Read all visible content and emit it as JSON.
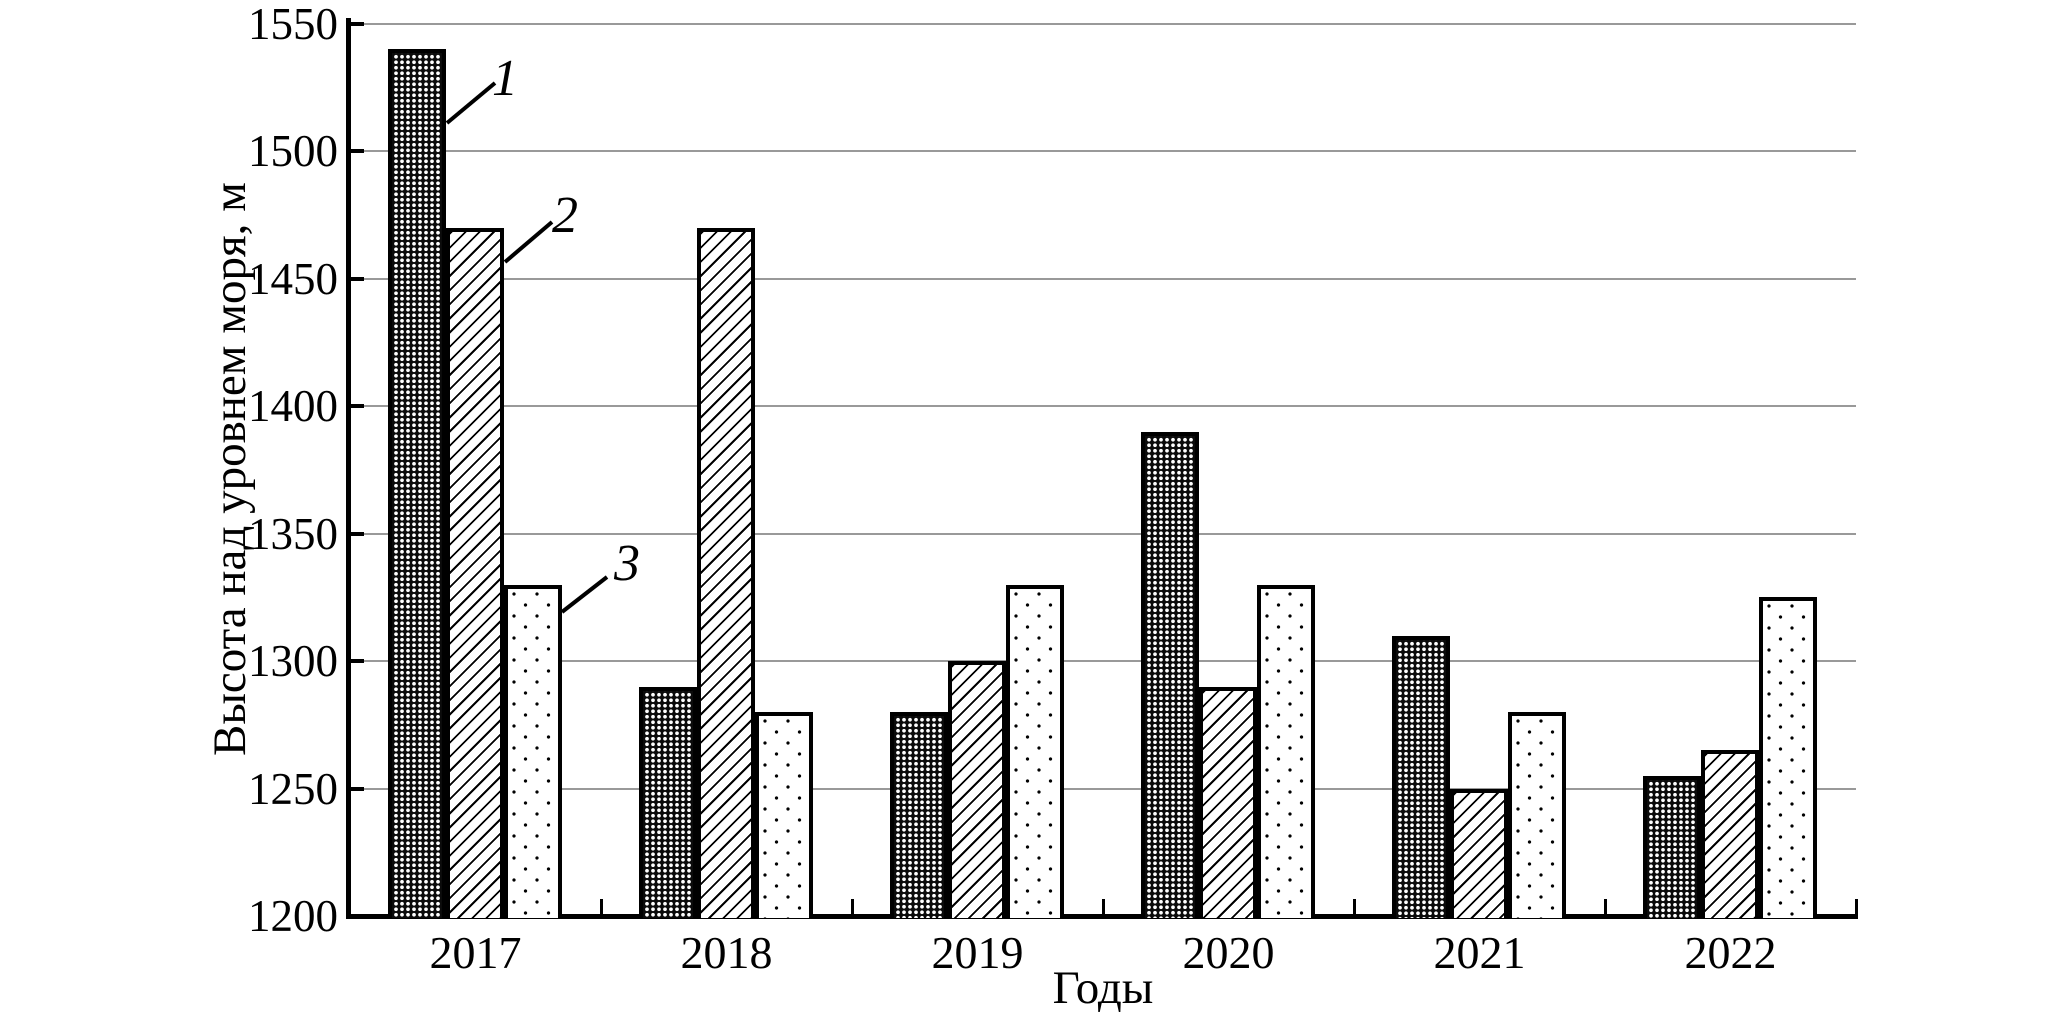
{
  "chart_data": {
    "type": "bar",
    "title": "",
    "categories": [
      "2017",
      "2018",
      "2019",
      "2020",
      "2021",
      "2022"
    ],
    "series": [
      {
        "name": "1",
        "pattern": "dense-white-dots-on-black",
        "values": [
          1540,
          1290,
          1280,
          1390,
          1310,
          1255
        ]
      },
      {
        "name": "2",
        "pattern": "thin-diagonal-hatch",
        "values": [
          1470,
          1470,
          1300,
          1290,
          1250,
          1265
        ]
      },
      {
        "name": "3",
        "pattern": "sparse-black-dots-on-white",
        "values": [
          1330,
          1280,
          1330,
          1330,
          1280,
          1325
        ]
      }
    ],
    "xlabel": "Годы",
    "ylabel": "Высота над уровнем моря, м",
    "ylim": [
      1200,
      1550
    ],
    "yticks": [
      1200,
      1250,
      1300,
      1350,
      1400,
      1450,
      1500,
      1550
    ],
    "grid": true,
    "legend_position": "none — italic numeric callouts beside 2017 bars",
    "callouts": [
      {
        "label": "1",
        "points_to": "2017 series 1 bar"
      },
      {
        "label": "2",
        "points_to": "2017 series 2 bar"
      },
      {
        "label": "3",
        "points_to": "2017 series 3 bar"
      }
    ],
    "colors": {
      "background": "#ffffff",
      "axis": "#000000",
      "gridline": "#999999",
      "bar_outline": "#000000"
    }
  }
}
